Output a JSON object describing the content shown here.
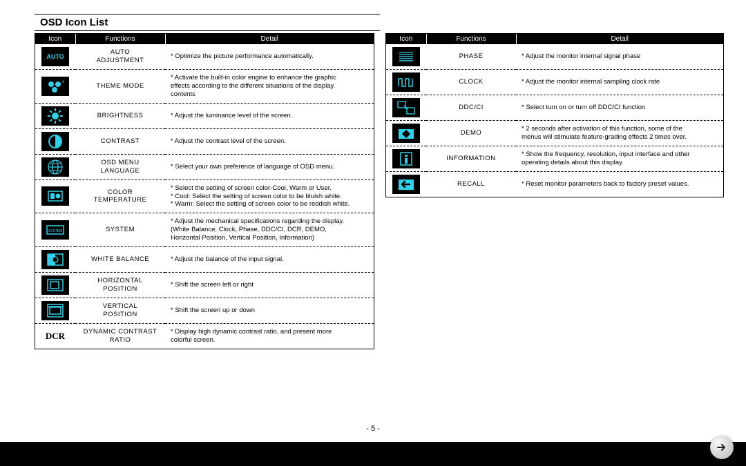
{
  "title": "OSD Icon List",
  "headers": {
    "icon": "Icon",
    "func": "Functions",
    "detail": "Detail"
  },
  "pageNum": "- 5 -",
  "cyan": "#33cfe6",
  "left": [
    {
      "icon": "auto",
      "func": "AUTO\nADJUSTMENT",
      "detail": "* Optimize the picture performance automatically."
    },
    {
      "icon": "theme",
      "func": "THEME MODE",
      "detail": "* Activate the built-in color engine to enhance the graphic\n  effects according to the different situations of the display.\n  contents"
    },
    {
      "icon": "brightness",
      "func": "BRIGHTNESS",
      "detail": "* Adjust the luminance level of the screen."
    },
    {
      "icon": "contrast",
      "func": "CONTRAST",
      "detail": "* Adjust the contrast level of the screen."
    },
    {
      "icon": "lang",
      "func": "OSD MENU\nLANGUAGE",
      "detail": "* Select your own preference of language of OSD menu."
    },
    {
      "icon": "ctemp",
      "func": "COLOR\nTEMPERATURE",
      "detail": "* Select the setting of screen color-Cool, Warm or User.\n* Cool: Select the setting of screen color to be bluish white.\n* Warm: Select the setting of screen color to be reddish white."
    },
    {
      "icon": "system",
      "func": "SYSTEM",
      "detail": "* Adjust the mechanical specifications regarding the display.\n  (White Balance, Clock, Phase, DDC/CI, DCR, DEMO,\n  Horizontal Position, Vertical Position, Information)"
    },
    {
      "icon": "wb",
      "func": "WHITE BALANCE",
      "detail": "* Adjust the balance of the input signal."
    },
    {
      "icon": "hpos",
      "func": "HORIZONTAL\nPOSITION",
      "detail": "* Shift the screen left or right"
    },
    {
      "icon": "vpos",
      "func": "VERTICAL\nPOSITION",
      "detail": "* Shift the screen up or down"
    },
    {
      "icon": "dcr",
      "func": "DYNAMIC CONTRAST\nRATIO",
      "detail": "* Display high dynamic contrast ratio, and present more\n  colorful screen."
    }
  ],
  "right": [
    {
      "icon": "phase",
      "func": "PHASE",
      "detail": "* Adjust the monitor internal signal phase"
    },
    {
      "icon": "clock",
      "func": "CLOCK",
      "detail": "* Adjust the monitor internal sampling clock rate"
    },
    {
      "icon": "ddcci",
      "func": "DDC/CI",
      "detail": "* Select turn on or turn off DDC/CI function"
    },
    {
      "icon": "demo",
      "func": "DEMO",
      "detail": "* 2 seconds after activation of this function, some of the\n  menus will stimulate feature-grading effects 2 times over."
    },
    {
      "icon": "info",
      "func": "INFORMATION",
      "detail": "* Show the frequency, resolution, input interface and other\n  operating details about this display."
    },
    {
      "icon": "recall",
      "func": "RECALL",
      "detail": "* Reset monitor parameters back to factory preset values."
    }
  ]
}
